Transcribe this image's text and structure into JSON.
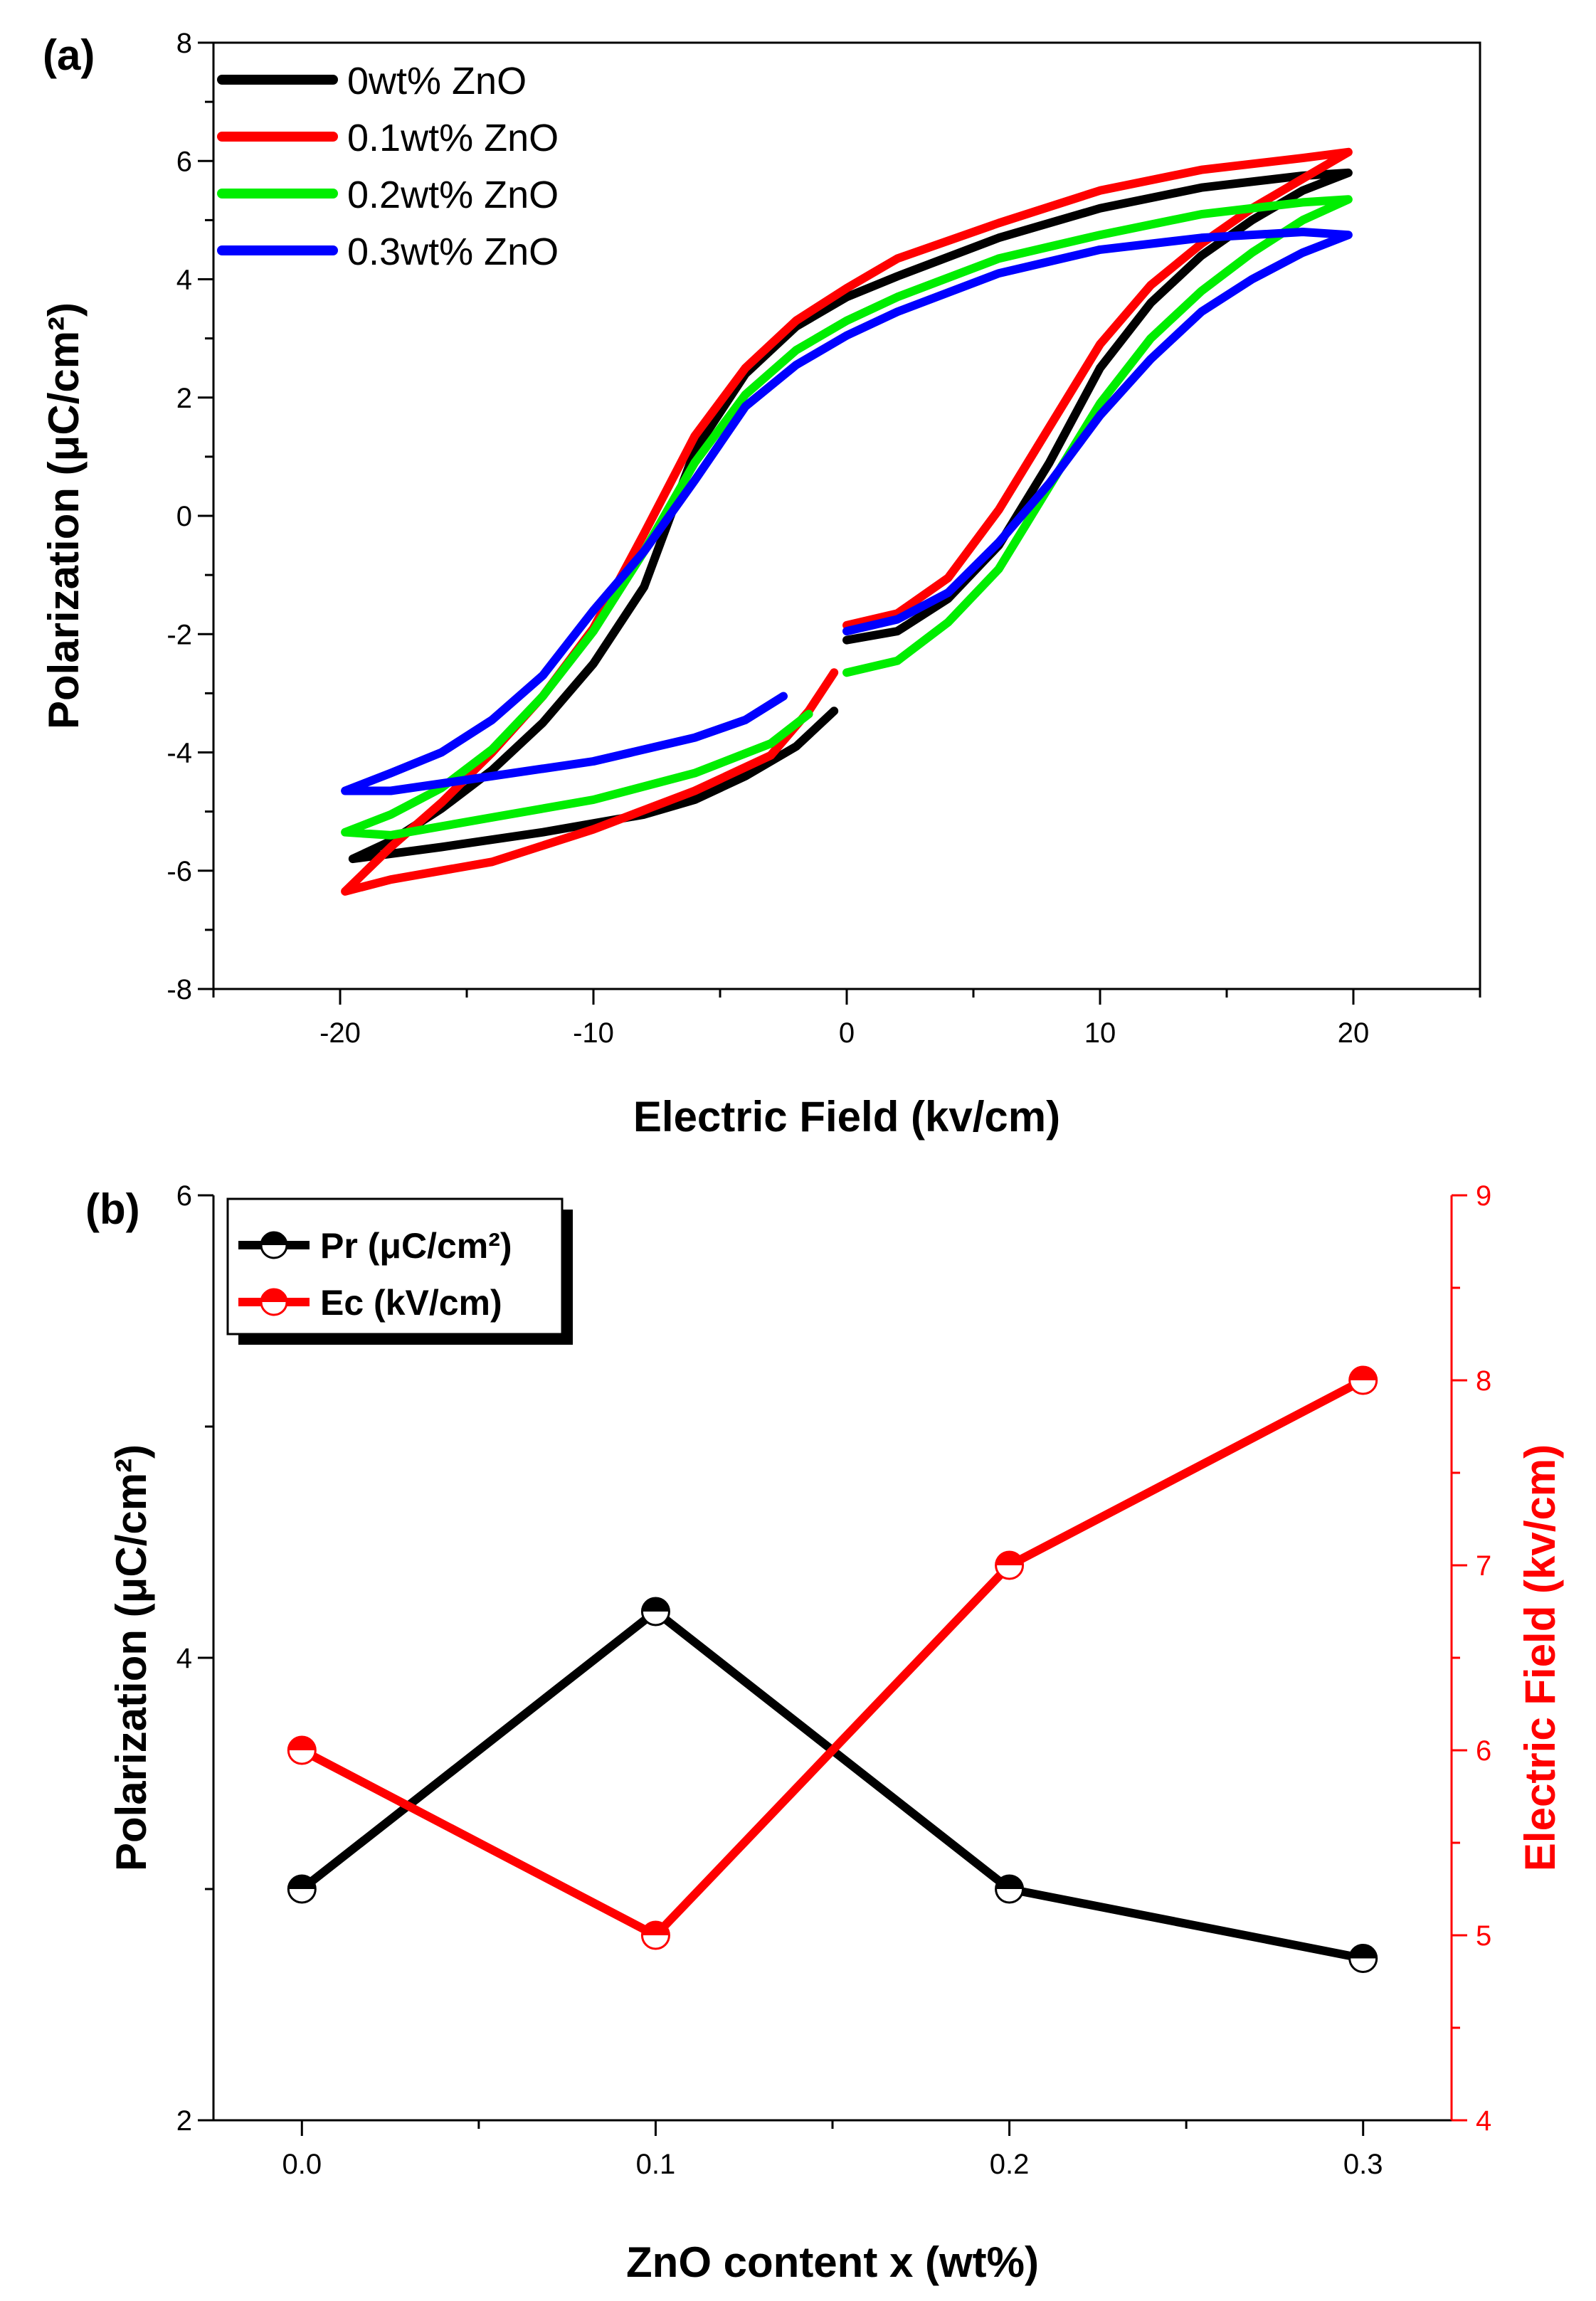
{
  "chart_data": [
    {
      "panel": "(a)",
      "type": "line",
      "xlabel": "Electric Field (kv/cm)",
      "ylabel": "Polarization (μC/cm²)",
      "xlim": [
        -25,
        25
      ],
      "ylim": [
        -8,
        8
      ],
      "xticks": [
        -20,
        -10,
        0,
        10,
        20
      ],
      "yticks": [
        -8,
        -6,
        -4,
        -2,
        0,
        2,
        4,
        6,
        8
      ],
      "legend_position": "top-left",
      "series": [
        {
          "name": "0wt% ZnO",
          "color": "#000000",
          "segments": [
            [
              [
                0,
                -2.1
              ],
              [
                2,
                -1.95
              ],
              [
                4,
                -1.4
              ],
              [
                6,
                -0.5
              ],
              [
                8,
                0.9
              ],
              [
                10,
                2.5
              ],
              [
                12,
                3.6
              ],
              [
                14,
                4.4
              ],
              [
                16,
                5.0
              ],
              [
                18,
                5.5
              ],
              [
                19.8,
                5.8
              ],
              [
                18,
                5.75
              ],
              [
                14,
                5.55
              ],
              [
                10,
                5.2
              ],
              [
                6,
                4.7
              ],
              [
                2,
                4.05
              ],
              [
                0,
                3.7
              ],
              [
                -2,
                3.2
              ],
              [
                -4,
                2.4
              ],
              [
                -6,
                1.1
              ],
              [
                -8,
                -1.2
              ],
              [
                -10,
                -2.5
              ],
              [
                -12,
                -3.5
              ],
              [
                -14,
                -4.3
              ],
              [
                -16,
                -4.95
              ],
              [
                -18,
                -5.5
              ],
              [
                -19.5,
                -5.8
              ],
              [
                -16,
                -5.6
              ],
              [
                -12,
                -5.35
              ],
              [
                -8,
                -5.05
              ],
              [
                -6,
                -4.8
              ],
              [
                -4,
                -4.4
              ],
              [
                -2,
                -3.9
              ],
              [
                -0.5,
                -3.3
              ]
            ]
          ]
        },
        {
          "name": "0.1wt% ZnO",
          "color": "#ff0000",
          "segments": [
            [
              [
                0,
                -1.85
              ],
              [
                2,
                -1.65
              ],
              [
                4,
                -1.05
              ],
              [
                6,
                0.1
              ],
              [
                8,
                1.5
              ],
              [
                10,
                2.9
              ],
              [
                12,
                3.9
              ],
              [
                14,
                4.6
              ],
              [
                16,
                5.2
              ],
              [
                18,
                5.7
              ],
              [
                19.8,
                6.15
              ],
              [
                18,
                6.05
              ],
              [
                14,
                5.85
              ],
              [
                10,
                5.5
              ],
              [
                6,
                4.95
              ],
              [
                2,
                4.35
              ],
              [
                0,
                3.85
              ],
              [
                -2,
                3.3
              ],
              [
                -4,
                2.5
              ],
              [
                -6,
                1.35
              ],
              [
                -8,
                -0.3
              ],
              [
                -10,
                -1.9
              ],
              [
                -12,
                -3.05
              ],
              [
                -14,
                -4.0
              ],
              [
                -16,
                -4.85
              ],
              [
                -18,
                -5.6
              ],
              [
                -19.8,
                -6.35
              ],
              [
                -18,
                -6.15
              ],
              [
                -14,
                -5.85
              ],
              [
                -10,
                -5.3
              ],
              [
                -6,
                -4.65
              ],
              [
                -3,
                -4.05
              ],
              [
                -1.5,
                -3.3
              ],
              [
                -0.5,
                -2.65
              ]
            ]
          ]
        },
        {
          "name": "0.2wt% ZnO",
          "color": "#00ee00",
          "segments": [
            [
              [
                0,
                -2.65
              ],
              [
                2,
                -2.45
              ],
              [
                4,
                -1.8
              ],
              [
                6,
                -0.9
              ],
              [
                8,
                0.5
              ],
              [
                10,
                1.9
              ],
              [
                12,
                3.0
              ],
              [
                14,
                3.8
              ],
              [
                16,
                4.45
              ],
              [
                18,
                5.0
              ],
              [
                19.8,
                5.35
              ],
              [
                18,
                5.3
              ],
              [
                14,
                5.1
              ],
              [
                10,
                4.75
              ],
              [
                6,
                4.35
              ],
              [
                2,
                3.7
              ],
              [
                0,
                3.3
              ],
              [
                -2,
                2.8
              ],
              [
                -4,
                2.05
              ],
              [
                -6,
                0.9
              ],
              [
                -8,
                -0.6
              ],
              [
                -10,
                -1.95
              ],
              [
                -12,
                -3.05
              ],
              [
                -14,
                -3.95
              ],
              [
                -16,
                -4.6
              ],
              [
                -18,
                -5.05
              ],
              [
                -19.8,
                -5.35
              ],
              [
                -18,
                -5.4
              ],
              [
                -14,
                -5.1
              ],
              [
                -10,
                -4.8
              ],
              [
                -6,
                -4.35
              ],
              [
                -3,
                -3.85
              ],
              [
                -1.5,
                -3.35
              ]
            ]
          ]
        },
        {
          "name": "0.3wt% ZnO",
          "color": "#0000ff",
          "segments": [
            [
              [
                0,
                -1.95
              ],
              [
                2,
                -1.75
              ],
              [
                4,
                -1.3
              ],
              [
                6,
                -0.45
              ],
              [
                8,
                0.55
              ],
              [
                10,
                1.7
              ],
              [
                12,
                2.65
              ],
              [
                14,
                3.45
              ],
              [
                16,
                4.0
              ],
              [
                18,
                4.45
              ],
              [
                19.8,
                4.75
              ],
              [
                18,
                4.8
              ],
              [
                14,
                4.7
              ],
              [
                10,
                4.5
              ],
              [
                6,
                4.1
              ],
              [
                2,
                3.45
              ],
              [
                0,
                3.05
              ],
              [
                -2,
                2.55
              ],
              [
                -4,
                1.85
              ],
              [
                -6,
                0.6
              ],
              [
                -8,
                -0.6
              ],
              [
                -10,
                -1.6
              ],
              [
                -12,
                -2.7
              ],
              [
                -14,
                -3.45
              ],
              [
                -16,
                -4.0
              ],
              [
                -18,
                -4.35
              ],
              [
                -19.8,
                -4.65
              ],
              [
                -18,
                -4.65
              ],
              [
                -14,
                -4.4
              ],
              [
                -10,
                -4.15
              ],
              [
                -6,
                -3.75
              ],
              [
                -4,
                -3.45
              ],
              [
                -2.5,
                -3.05
              ]
            ]
          ]
        }
      ]
    },
    {
      "panel": "(b)",
      "type": "line",
      "xlabel": "ZnO content x (wt%)",
      "ylabel": "Polarization (μC/cm²)",
      "ylabel_right": "Electric Field (kv/cm)",
      "xlim": [
        -0.025,
        0.325
      ],
      "ylim": [
        2,
        6
      ],
      "ylim_right": [
        4,
        9
      ],
      "xticks": [
        "0.0",
        "0.1",
        "0.2",
        "0.3"
      ],
      "yticks": [
        2,
        4,
        6
      ],
      "yticks_right": [
        4,
        5,
        6,
        7,
        8,
        9
      ],
      "legend_position": "top-left",
      "categories": [
        0.0,
        0.1,
        0.2,
        0.3
      ],
      "series": [
        {
          "name": "Pr (μC/cm²)",
          "axis": "left",
          "color": "#000000",
          "values": [
            3.0,
            4.2,
            3.0,
            2.7
          ]
        },
        {
          "name": "Ec (kV/cm)",
          "axis": "right",
          "color": "#ff0000",
          "values": [
            6.0,
            5.0,
            7.0,
            8.0
          ]
        }
      ]
    }
  ]
}
